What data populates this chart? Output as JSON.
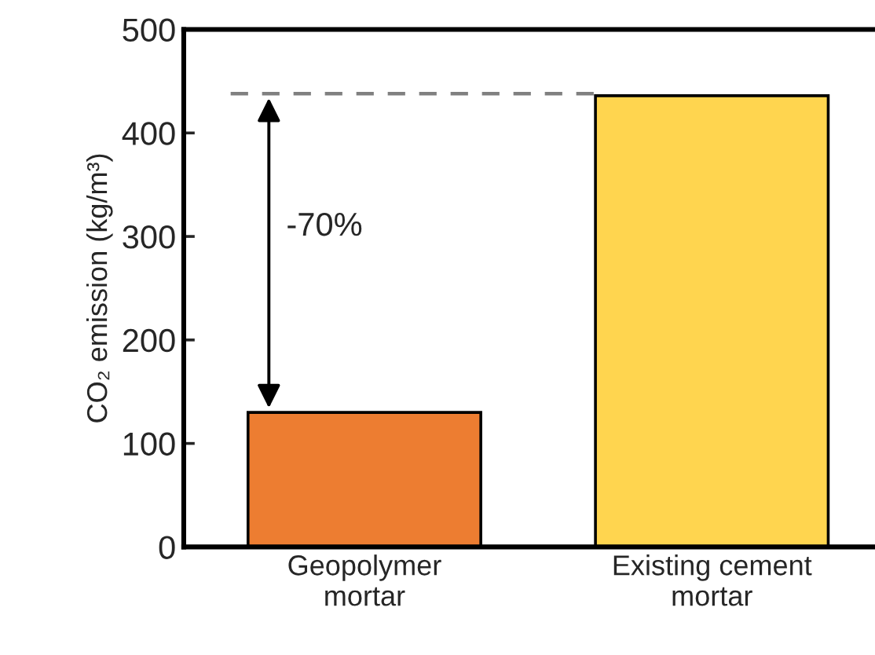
{
  "chart_data": {
    "type": "bar",
    "ylabel": "CO₂ emission (kg/m³)",
    "categories": [
      "Geopolymer\nmortar",
      "Existing cement\nmortar"
    ],
    "values": [
      130,
      436
    ],
    "colors": [
      "#ed7d31",
      "#ffd54f"
    ],
    "ylim": [
      0,
      500
    ],
    "yticks": [
      0,
      100,
      200,
      300,
      400,
      500
    ],
    "grid": false,
    "ref_lines": [
      {
        "axis": "y",
        "value": 438,
        "color": "#808080",
        "line_style": "dashed"
      }
    ],
    "annotations": [
      "-70%"
    ]
  }
}
